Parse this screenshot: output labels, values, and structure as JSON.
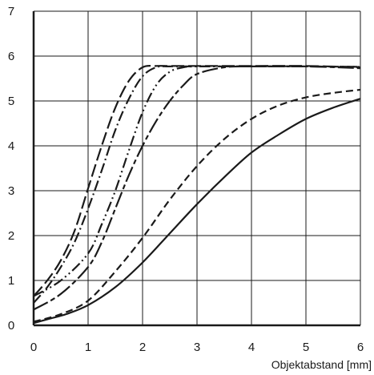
{
  "chart_data": {
    "type": "line",
    "title": "",
    "xlabel": "Objektabstand [mm]",
    "ylabel": "",
    "xlim": [
      0,
      6
    ],
    "ylim": [
      0,
      7
    ],
    "xticks": [
      "0",
      "1",
      "2",
      "3",
      "4",
      "5",
      "6"
    ],
    "yticks": [
      "0",
      "1",
      "2",
      "3",
      "4",
      "5",
      "6",
      "7"
    ],
    "grid": true,
    "legend": "none",
    "line_color": "#1a1a1a",
    "series": [
      {
        "style": "solid",
        "x": [
          0,
          0.3,
          0.6,
          1.0,
          1.5,
          2.0,
          2.5,
          3.0,
          3.5,
          4.0,
          4.5,
          5.0,
          5.5,
          6.0
        ],
        "y": [
          0.05,
          0.15,
          0.25,
          0.45,
          0.85,
          1.4,
          2.05,
          2.7,
          3.3,
          3.85,
          4.25,
          4.6,
          4.85,
          5.05
        ]
      },
      {
        "style": "dashed",
        "x": [
          0,
          0.5,
          1.0,
          1.5,
          2.0,
          2.5,
          3.0,
          3.5,
          4.0,
          4.5,
          5.0,
          5.5,
          6.0
        ],
        "y": [
          0.08,
          0.25,
          0.55,
          1.2,
          1.95,
          2.8,
          3.55,
          4.15,
          4.6,
          4.9,
          5.08,
          5.18,
          5.25
        ]
      },
      {
        "style": "long-dash",
        "x": [
          0,
          0.25,
          0.5,
          0.75,
          1.0,
          1.25,
          1.5,
          1.75,
          2.0,
          2.25,
          2.5,
          3.0,
          3.5,
          4.0,
          5.0,
          6.0
        ],
        "y": [
          0.65,
          1.0,
          1.45,
          2.1,
          3.05,
          4.0,
          4.85,
          5.45,
          5.75,
          5.78,
          5.78,
          5.78,
          5.78,
          5.78,
          5.78,
          5.75
        ]
      },
      {
        "style": "dash-dot",
        "x": [
          0,
          0.25,
          0.5,
          0.75,
          1.0,
          1.25,
          1.5,
          1.75,
          2.0,
          2.25,
          2.5,
          3.0,
          3.5,
          4.0,
          5.0,
          6.0
        ],
        "y": [
          0.5,
          0.85,
          1.3,
          1.85,
          2.6,
          3.45,
          4.35,
          5.05,
          5.55,
          5.75,
          5.77,
          5.77,
          5.77,
          5.77,
          5.77,
          5.76
        ]
      },
      {
        "style": "dash-dot-dot",
        "x": [
          0,
          0.5,
          1.0,
          1.25,
          1.5,
          1.75,
          2.0,
          2.25,
          2.5,
          2.75,
          3.0,
          3.5,
          4.0,
          5.0,
          6.0
        ],
        "y": [
          0.65,
          1.0,
          1.6,
          2.25,
          3.0,
          3.9,
          4.75,
          5.35,
          5.65,
          5.75,
          5.77,
          5.77,
          5.77,
          5.77,
          5.76
        ]
      },
      {
        "style": "long-dash-short",
        "x": [
          0,
          0.5,
          1.0,
          1.25,
          1.5,
          1.75,
          2.0,
          2.25,
          2.5,
          2.75,
          3.0,
          3.5,
          4.0,
          5.0,
          6.0
        ],
        "y": [
          0.35,
          0.7,
          1.3,
          1.85,
          2.6,
          3.35,
          4.0,
          4.55,
          5.0,
          5.35,
          5.6,
          5.75,
          5.77,
          5.77,
          5.73
        ]
      }
    ]
  }
}
